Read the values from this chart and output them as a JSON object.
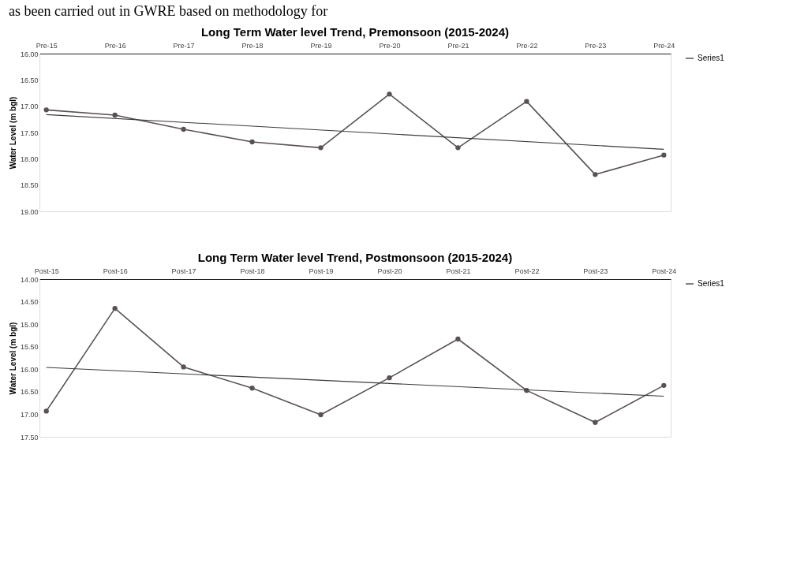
{
  "chart_data": [
    {
      "type": "line",
      "title": "Long Term Water level Trend, Premonsoon (2015-2024)",
      "ylabel": "Water Level (m bgl)",
      "annotations": [
        "as been carried out in GWRE based on methodology for"
      ],
      "categories": [
        "Pre-15",
        "Pre-16",
        "Pre-17",
        "Pre-18",
        "Pre-19",
        "Pre-20",
        "Pre-21",
        "Pre-22",
        "Pre-23",
        "Pre-24"
      ],
      "series": [
        {
          "name": "Series1",
          "color": "#5a5252",
          "marker": "circle",
          "values": [
            17.07,
            17.17,
            17.44,
            17.68,
            17.79,
            16.77,
            17.79,
            16.91,
            18.3,
            17.93
          ]
        },
        {
          "type": "line",
          "color": "#3a3a3a",
          "marker": "none",
          "values": [
            17.16,
            null,
            null,
            null,
            null,
            null,
            null,
            null,
            null,
            17.82
          ]
        }
      ],
      "ylim": [
        19.0,
        16.0
      ],
      "yticks": [
        {
          "value": 16,
          "label": "16.00"
        },
        {
          "value": 16.5,
          "label": "16.50"
        },
        {
          "value": 17,
          "label": "17.00"
        },
        {
          "value": 17.5,
          "label": "17.50"
        },
        {
          "value": 18,
          "label": "18.00"
        },
        {
          "value": 18.5,
          "label": "18.50"
        },
        {
          "value": 19,
          "label": "19.00"
        }
      ],
      "grid": false,
      "legend": "right"
    },
    {
      "type": "line",
      "title": "Long Term Water level Trend, Postmonsoon (2015-2024)",
      "ylabel": "Water Level (m bgl)",
      "categories": [
        "Post-15",
        "Post-16",
        "Post-17",
        "Post-18",
        "Post-19",
        "Post-20",
        "Post-21",
        "Post-22",
        "Post-23",
        "Post-24"
      ],
      "series": [
        {
          "name": "Series1",
          "color": "#5a5252",
          "marker": "circle",
          "values": [
            16.93,
            14.65,
            15.95,
            16.42,
            17.01,
            16.19,
            15.33,
            16.47,
            17.18,
            16.36
          ]
        },
        {
          "type": "line",
          "color": "#3a3a3a",
          "marker": "none",
          "values": [
            15.96,
            null,
            null,
            null,
            null,
            null,
            null,
            null,
            null,
            16.6
          ]
        }
      ],
      "ylim": [
        17.5,
        14.0
      ],
      "yticks": [
        {
          "value": 14,
          "label": "14.00"
        },
        {
          "value": 14.5,
          "label": "14.50"
        },
        {
          "value": 15,
          "label": "15.00"
        },
        {
          "value": 15.5,
          "label": "15.50"
        },
        {
          "value": 16,
          "label": "16.00"
        },
        {
          "value": 16.5,
          "label": "16.50"
        },
        {
          "value": 17,
          "label": "17.00"
        },
        {
          "value": 17.5,
          "label": "17.50"
        }
      ],
      "grid": false,
      "legend": "right"
    }
  ]
}
